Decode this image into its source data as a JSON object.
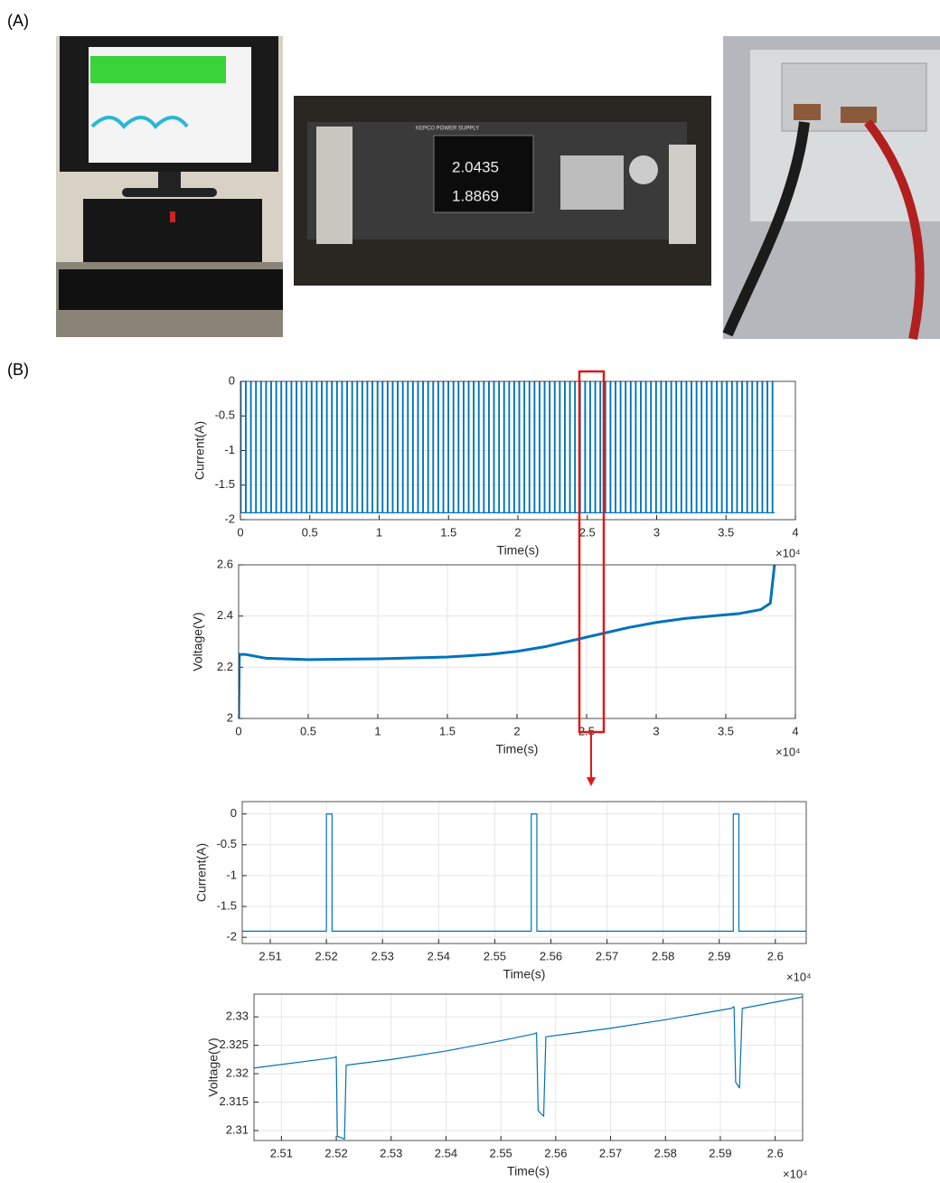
{
  "panels": {
    "a": "(A)",
    "b": "(B)"
  },
  "photos": {
    "supply_brand": "KEPCO POWER SUPPLY",
    "display_1": "2.0435",
    "display_2": "1.8869"
  },
  "chart_data": [
    {
      "type": "pulse",
      "x_label": "Time(s)",
      "y_label": "Current(A)",
      "x_offset_label": "×10⁴",
      "xlim": [
        0,
        40000
      ],
      "ylim": [
        -2,
        0
      ],
      "grid": true,
      "xticks": [
        0,
        {
          "value": 5000,
          "label": "0.5"
        },
        {
          "value": 10000,
          "label": "1"
        },
        {
          "value": 15000,
          "label": "1.5"
        },
        {
          "value": 20000,
          "label": "2"
        },
        {
          "value": 25000,
          "label": "2.5"
        },
        {
          "value": 30000,
          "label": "3"
        },
        {
          "value": 35000,
          "label": "3.5"
        },
        {
          "value": 40000,
          "label": "4"
        }
      ],
      "yticks": [
        -2,
        -1.5,
        -1,
        -0.5,
        0
      ],
      "series": [
        {
          "color": "#0072bd",
          "low": -1.9,
          "high": 0,
          "pulse_width": 50,
          "end": 38500,
          "pulse_starts": [
            0,
            365,
            730,
            1095,
            1460,
            1825,
            2190,
            2555,
            2920,
            3285,
            3650,
            4015,
            4380,
            4745,
            5110,
            5475,
            5840,
            6205,
            6570,
            6935,
            7300,
            7665,
            8030,
            8395,
            8760,
            9125,
            9490,
            9855,
            10220,
            10585,
            10950,
            11315,
            11680,
            12045,
            12410,
            12775,
            13140,
            13505,
            13870,
            14235,
            14600,
            14965,
            15330,
            15695,
            16060,
            16425,
            16790,
            17155,
            17520,
            17885,
            18250,
            18615,
            18980,
            19345,
            19710,
            20075,
            20440,
            20805,
            21170,
            21535,
            21900,
            22265,
            22630,
            22995,
            23360,
            23725,
            24090,
            24455,
            24820,
            25185,
            25550,
            25915,
            26280,
            26645,
            27010,
            27375,
            27740,
            28105,
            28470,
            28835,
            29200,
            29565,
            29930,
            30295,
            30660,
            31025,
            31390,
            31755,
            32120,
            32485,
            32850,
            33215,
            33580,
            33945,
            34310,
            34675,
            35040,
            35405,
            35770,
            36135,
            36500,
            36865,
            37230,
            37595,
            37960,
            38325
          ]
        }
      ]
    },
    {
      "type": "line",
      "x_label": "Time(s)",
      "y_label": "Voltage(V)",
      "x_offset_label": "×10⁴",
      "xlim": [
        0,
        40000
      ],
      "ylim": [
        2,
        2.6
      ],
      "grid": true,
      "xticks": [
        0,
        {
          "value": 5000,
          "label": "0.5"
        },
        {
          "value": 10000,
          "label": "1"
        },
        {
          "value": 15000,
          "label": "1.5"
        },
        {
          "value": 20000,
          "label": "2"
        },
        {
          "value": 25000,
          "label": "2.5"
        },
        {
          "value": 30000,
          "label": "3"
        },
        {
          "value": 35000,
          "label": "3.5"
        },
        {
          "value": 40000,
          "label": "4"
        }
      ],
      "yticks": [
        2,
        2.2,
        2.4,
        2.6
      ],
      "x": [
        0,
        50,
        500,
        2000,
        5000,
        10000,
        15000,
        18000,
        20000,
        22000,
        24000,
        26000,
        28000,
        30000,
        32000,
        34000,
        36000,
        37500,
        38200,
        38500
      ],
      "series": [
        {
          "color": "#0072bd",
          "width": 3,
          "values": [
            2.0,
            2.25,
            2.25,
            2.235,
            2.23,
            2.233,
            2.24,
            2.25,
            2.262,
            2.28,
            2.305,
            2.33,
            2.355,
            2.375,
            2.39,
            2.4,
            2.41,
            2.425,
            2.45,
            2.6
          ]
        }
      ]
    },
    {
      "type": "line",
      "x_label": "Time(s)",
      "y_label": "Current(A)",
      "x_offset_label": "×10⁴",
      "xlim": [
        25050,
        26055
      ],
      "ylim": [
        -2.1,
        0.2
      ],
      "grid": true,
      "xticks": [
        {
          "value": 25100,
          "label": "2.51"
        },
        {
          "value": 25200,
          "label": "2.52"
        },
        {
          "value": 25300,
          "label": "2.53"
        },
        {
          "value": 25400,
          "label": "2.54"
        },
        {
          "value": 25500,
          "label": "2.55"
        },
        {
          "value": 25600,
          "label": "2.56"
        },
        {
          "value": 25700,
          "label": "2.57"
        },
        {
          "value": 25800,
          "label": "2.58"
        },
        {
          "value": 25900,
          "label": "2.59"
        },
        {
          "value": 26000,
          "label": "2.6"
        }
      ],
      "yticks": [
        -2,
        -1.5,
        -1,
        -0.5,
        0
      ],
      "x": [
        25050,
        25200,
        25200,
        25210,
        25210,
        25565,
        25565,
        25575,
        25575,
        25925,
        25925,
        25935,
        25935,
        26055
      ],
      "series": [
        {
          "color": "#0072bd",
          "width": 1.2,
          "values": [
            -1.9,
            -1.9,
            0,
            0,
            -1.9,
            -1.9,
            0,
            0,
            -1.9,
            -1.9,
            0,
            0,
            -1.9,
            -1.9
          ]
        }
      ]
    },
    {
      "type": "line",
      "x_label": "Time(s)",
      "y_label": "Voltage(V)",
      "x_offset_label": "×10⁴",
      "xlim": [
        25050,
        26050
      ],
      "ylim": [
        2.30825,
        2.334
      ],
      "grid": true,
      "xticks": [
        {
          "value": 25100,
          "label": "2.51"
        },
        {
          "value": 25200,
          "label": "2.52"
        },
        {
          "value": 25300,
          "label": "2.53"
        },
        {
          "value": 25400,
          "label": "2.54"
        },
        {
          "value": 25500,
          "label": "2.55"
        },
        {
          "value": 25600,
          "label": "2.56"
        },
        {
          "value": 25700,
          "label": "2.57"
        },
        {
          "value": 25800,
          "label": "2.58"
        },
        {
          "value": 25900,
          "label": "2.59"
        },
        {
          "value": 26000,
          "label": "2.6"
        }
      ],
      "yticks": [
        2.31,
        2.315,
        2.32,
        2.325,
        2.33
      ],
      "x": [
        25050,
        25195,
        25200,
        25202,
        25215,
        25218,
        25300,
        25400,
        25500,
        25560,
        25565,
        25568,
        25578,
        25582,
        25700,
        25800,
        25920,
        25925,
        25928,
        25935,
        25940,
        26050
      ],
      "series": [
        {
          "color": "#0072bd",
          "width": 1.2,
          "values": [
            2.321,
            2.3228,
            2.323,
            2.309,
            2.3085,
            2.3215,
            2.3225,
            2.324,
            2.3258,
            2.327,
            2.3272,
            2.3135,
            2.3125,
            2.3265,
            2.328,
            2.3295,
            2.3315,
            2.3318,
            2.3185,
            2.3175,
            2.3315,
            2.3335
          ]
        }
      ]
    }
  ]
}
